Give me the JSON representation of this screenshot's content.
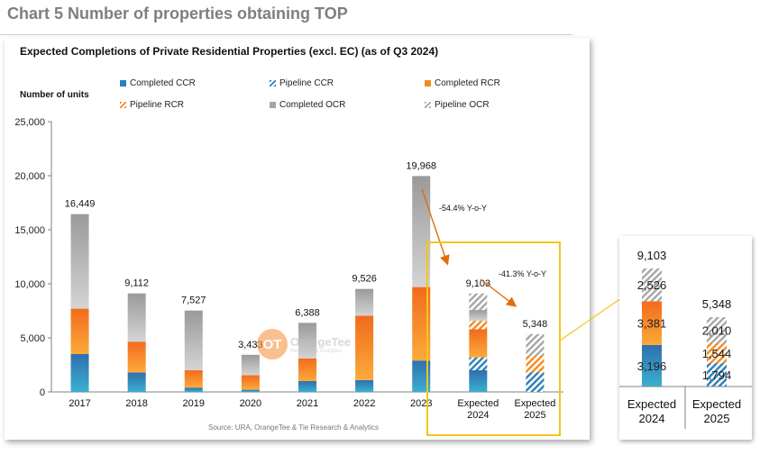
{
  "heading": "Chart 5 Number of properties obtaining TOP",
  "source": "Source: URA, OrangeTee & Tie Research & Analytics",
  "watermark": {
    "logo": "OT",
    "name": "OrangeTee",
    "sub": "Research & Analytics"
  },
  "colors": {
    "completed_ccr": "#2c7fb8",
    "pipeline_ccr": "#2c7fb8",
    "completed_rcr": "#f6891f",
    "pipeline_rcr": "#f6891f",
    "completed_ocr": "#a6a6a6",
    "pipeline_ocr": "#a6a6a6",
    "highlight_box": "#f5c518",
    "arrow": "#e36c09"
  },
  "chart_data": [
    {
      "type": "bar",
      "stacked": true,
      "title": "Expected Completions of Private Residential Properties (excl. EC) (as of Q3 2024)",
      "ylabel": "Number of units",
      "ylim": [
        0,
        25000
      ],
      "yticks": [
        "0",
        "5,000",
        "10,000",
        "15,000",
        "20,000",
        "25,000"
      ],
      "categories": [
        "2017",
        "2018",
        "2019",
        "2020",
        "2021",
        "2022",
        "2023",
        "Expected 2024",
        "Expected 2025"
      ],
      "totals": [
        "16,449",
        "9,112",
        "7,527",
        "3,433",
        "6,388",
        "9,526",
        "19,968",
        "9,103",
        "5,348"
      ],
      "legend_position": "top",
      "series": [
        {
          "name": "Completed CCR",
          "values": [
            3500,
            1800,
            400,
            200,
            1000,
            1100,
            2900,
            2000,
            0
          ]
        },
        {
          "name": "Pipeline CCR",
          "values": [
            0,
            0,
            0,
            0,
            0,
            0,
            0,
            1196,
            1794
          ]
        },
        {
          "name": "Completed RCR",
          "values": [
            4200,
            2850,
            1600,
            1350,
            2100,
            5950,
            6800,
            2600,
            0
          ]
        },
        {
          "name": "Pipeline RCR",
          "values": [
            0,
            0,
            0,
            0,
            0,
            0,
            0,
            781,
            1544
          ]
        },
        {
          "name": "Completed OCR",
          "values": [
            8749,
            4462,
            5527,
            1883,
            3288,
            2476,
            10268,
            1000,
            0
          ]
        },
        {
          "name": "Pipeline OCR",
          "values": [
            0,
            0,
            0,
            0,
            0,
            0,
            0,
            1526,
            2010
          ]
        }
      ],
      "annotations": [
        "-54.4% Y-o-Y",
        "-41.3% Y-o-Y"
      ]
    },
    {
      "type": "bar",
      "stacked": true,
      "categories": [
        "Expected 2024",
        "Expected 2025"
      ],
      "totals": [
        "9,103",
        "5,348"
      ],
      "segment_labels": [
        [
          "3,196",
          "3,381",
          "2,526"
        ],
        [
          "1,794",
          "1,544",
          "2,010"
        ]
      ],
      "series": [
        {
          "name": "CCR",
          "values": [
            3196,
            1794
          ]
        },
        {
          "name": "RCR",
          "values": [
            3381,
            1544
          ]
        },
        {
          "name": "OCR",
          "values": [
            2526,
            2010
          ]
        }
      ]
    }
  ]
}
